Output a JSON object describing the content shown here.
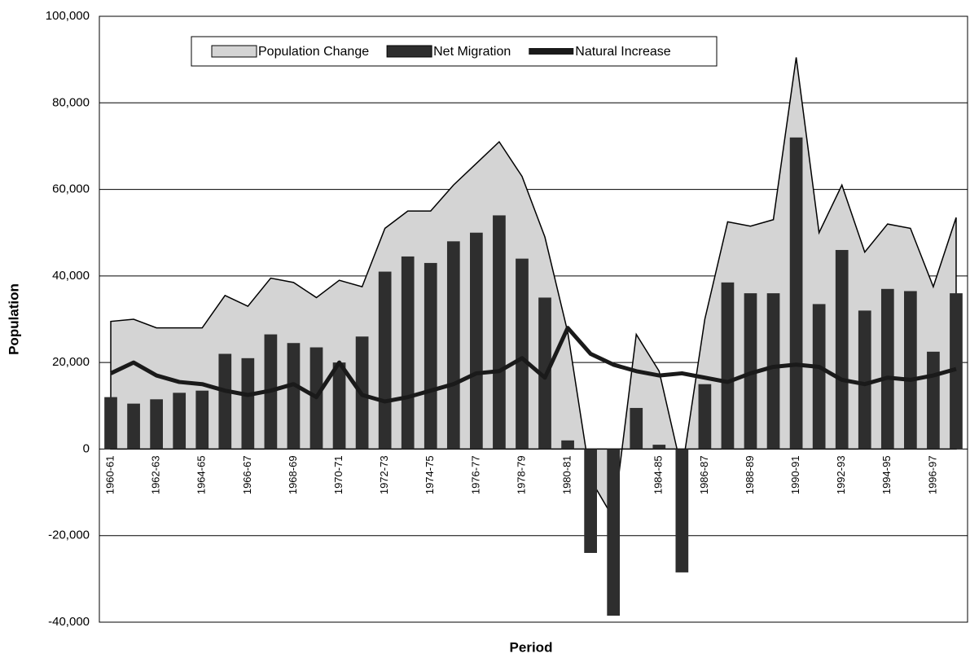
{
  "chart_data": {
    "type": "combo",
    "x_label": "Period",
    "y_label": "Population",
    "categories": [
      "1960-61",
      null,
      "1962-63",
      null,
      "1964-65",
      null,
      "1966-67",
      null,
      "1968-69",
      null,
      "1970-71",
      null,
      "1972-73",
      null,
      "1974-75",
      null,
      "1976-77",
      null,
      "1978-79",
      null,
      "1980-81",
      null,
      null,
      null,
      "1984-85",
      null,
      "1986-87",
      null,
      "1988-89",
      null,
      "1990-91",
      null,
      "1992-93",
      null,
      "1994-95",
      null,
      "1996-97",
      null
    ],
    "series": [
      {
        "name": "Population Change",
        "type": "area",
        "color": "#d4d4d4",
        "values": [
          29500,
          30000,
          28000,
          28000,
          28000,
          35500,
          33000,
          39500,
          38500,
          35000,
          39000,
          37500,
          51000,
          55000,
          55000,
          61000,
          66000,
          71000,
          63000,
          49000,
          27000,
          -7000,
          -16000,
          26500,
          18000,
          -5000,
          30000,
          52500,
          51500,
          53000,
          90500,
          50000,
          61000,
          45500,
          52000,
          51000,
          37500,
          53500
        ]
      },
      {
        "name": "Net Migration",
        "type": "bar",
        "color": "#2e2e2e",
        "values": [
          12000,
          10500,
          11500,
          13000,
          13500,
          22000,
          21000,
          26500,
          24500,
          23500,
          20000,
          26000,
          41000,
          44500,
          43000,
          48000,
          50000,
          54000,
          44000,
          35000,
          2000,
          -24000,
          -38500,
          9500,
          1000,
          -28500,
          15000,
          38500,
          36000,
          36000,
          72000,
          33500,
          46000,
          32000,
          37000,
          36500,
          22500,
          36000
        ]
      },
      {
        "name": "Natural Increase",
        "type": "line",
        "color": "#1a1a1a",
        "values": [
          17500,
          20000,
          17000,
          15500,
          15000,
          13500,
          12500,
          13500,
          15000,
          12000,
          20000,
          12500,
          11000,
          12000,
          13500,
          15000,
          17500,
          18000,
          21000,
          16500,
          28000,
          22000,
          19500,
          18000,
          17000,
          17500,
          16500,
          15500,
          17500,
          19000,
          19500,
          19000,
          16000,
          15000,
          16500,
          16000,
          17000,
          18500
        ]
      }
    ],
    "ylim": [
      -40000,
      100000
    ],
    "yticks": [
      {
        "value": -40000,
        "label": "-40,000"
      },
      {
        "value": -20000,
        "label": "-20,000"
      },
      0,
      {
        "value": 20000,
        "label": "20,000"
      },
      {
        "value": 40000,
        "label": "40,000"
      },
      {
        "value": 60000,
        "label": "60,000"
      },
      {
        "value": 80000,
        "label": "80,000"
      },
      {
        "value": 100000,
        "label": "100,000"
      }
    ],
    "grid": true,
    "legend": "top"
  }
}
